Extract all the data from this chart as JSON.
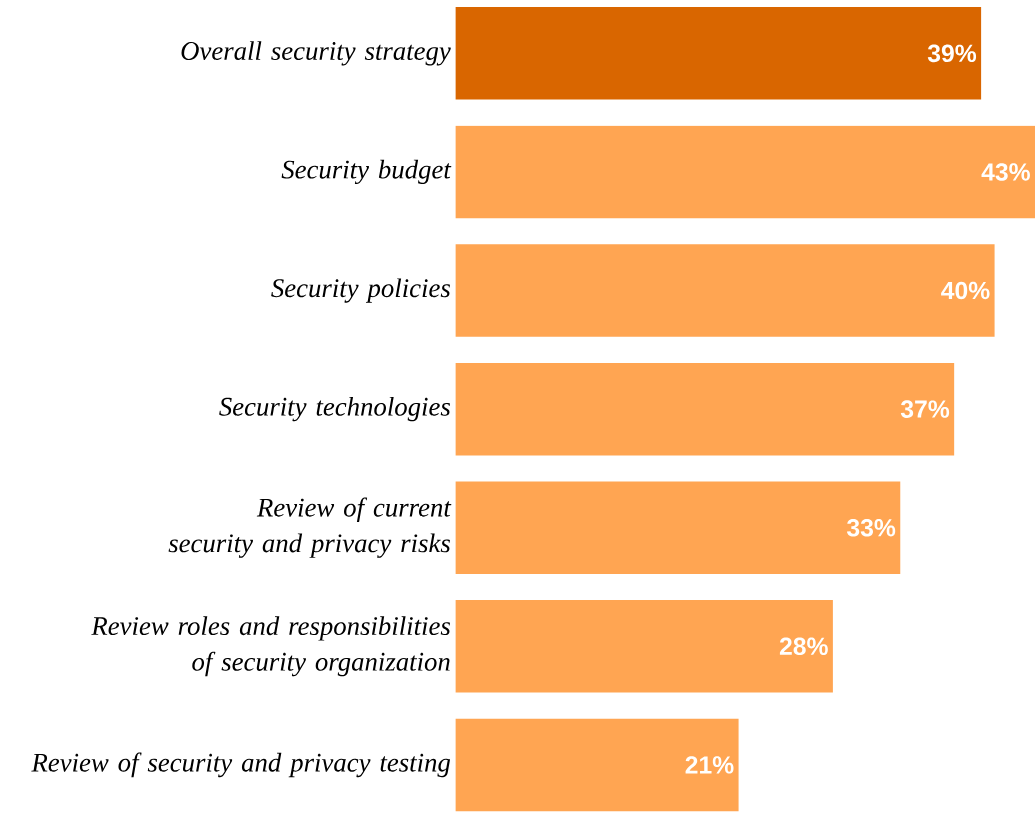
{
  "chart_data": {
    "type": "bar",
    "orientation": "horizontal",
    "categories": [
      "Overall security strategy",
      "Security budget",
      "Security policies",
      "Security technologies",
      "Review of current security and privacy risks",
      "Review roles and responsibilities of security organization",
      "Review of security and privacy testing"
    ],
    "values": [
      39,
      43,
      40,
      37,
      33,
      28,
      21
    ],
    "colors": [
      "#d96600",
      "#ffa552",
      "#ffa552",
      "#ffa552",
      "#ffa552",
      "#ffa552",
      "#ffa552"
    ],
    "value_labels": [
      "39%",
      "43%",
      "40%",
      "37%",
      "33%",
      "28%",
      "21%"
    ],
    "xlim": [
      0,
      43
    ],
    "tick_labels": "y"
  }
}
